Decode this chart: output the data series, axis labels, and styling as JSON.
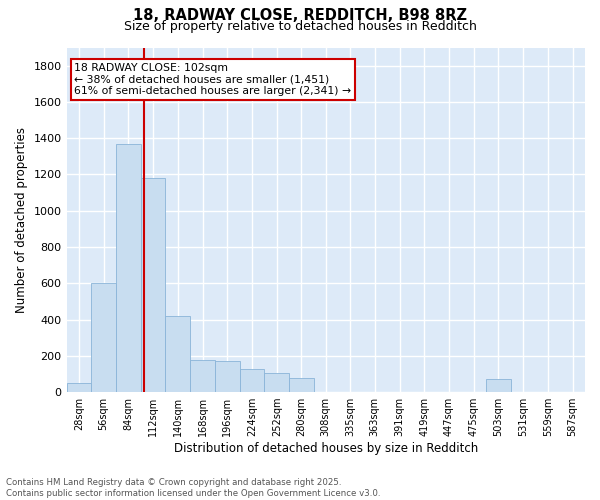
{
  "title1": "18, RADWAY CLOSE, REDDITCH, B98 8RZ",
  "title2": "Size of property relative to detached houses in Redditch",
  "xlabel": "Distribution of detached houses by size in Redditch",
  "ylabel": "Number of detached properties",
  "bar_color": "#c8ddf0",
  "bar_edge_color": "#8ab4d8",
  "background_color": "#ddeaf8",
  "grid_color": "#ffffff",
  "annotation_line_color": "#cc0000",
  "annotation_box_color": "#cc0000",
  "annotation_text": "18 RADWAY CLOSE: 102sqm\n← 38% of detached houses are smaller (1,451)\n61% of semi-detached houses are larger (2,341) →",
  "property_size_x": 102,
  "footnote": "Contains HM Land Registry data © Crown copyright and database right 2025.\nContains public sector information licensed under the Open Government Licence v3.0.",
  "bin_labels": [
    "28sqm",
    "56sqm",
    "84sqm",
    "112sqm",
    "140sqm",
    "168sqm",
    "196sqm",
    "224sqm",
    "252sqm",
    "280sqm",
    "308sqm",
    "335sqm",
    "363sqm",
    "391sqm",
    "419sqm",
    "447sqm",
    "475sqm",
    "503sqm",
    "531sqm",
    "559sqm",
    "587sqm"
  ],
  "bin_left_edges": [
    14,
    42,
    70,
    98,
    126,
    154,
    182,
    210,
    238,
    266,
    294,
    321,
    349,
    377,
    405,
    433,
    461,
    489,
    517,
    545,
    573
  ],
  "bin_right_edges": [
    42,
    70,
    98,
    126,
    154,
    182,
    210,
    238,
    266,
    294,
    321,
    349,
    377,
    405,
    433,
    461,
    489,
    517,
    545,
    573,
    601
  ],
  "counts": [
    50,
    600,
    1370,
    1180,
    420,
    175,
    170,
    125,
    105,
    80,
    0,
    0,
    0,
    0,
    0,
    0,
    0,
    70,
    0,
    0,
    0
  ],
  "ylim": [
    0,
    1900
  ],
  "yticks": [
    0,
    200,
    400,
    600,
    800,
    1000,
    1200,
    1400,
    1600,
    1800
  ],
  "xlim_left": 14,
  "xlim_right": 601
}
